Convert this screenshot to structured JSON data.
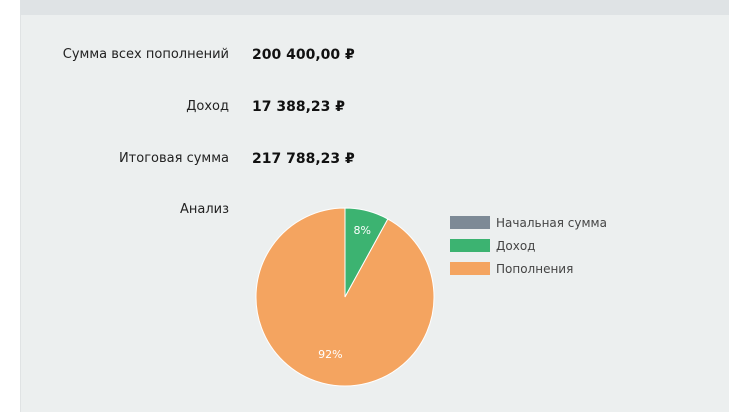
{
  "summary": {
    "total_deposits_label": "Сумма всех пополнений",
    "total_deposits_value": "200 400,00 ₽",
    "income_label": "Доход",
    "income_value": "17 388,23 ₽",
    "final_label": "Итоговая сумма",
    "final_value": "217 788,23 ₽",
    "analysis_label": "Анализ"
  },
  "chart_data": {
    "type": "pie",
    "categories": [
      "Начальная сумма",
      "Доход",
      "Пополнения"
    ],
    "values": [
      0,
      8,
      92
    ],
    "data_labels": [
      "",
      "8%",
      "92%"
    ],
    "colors": [
      "#7d8a96",
      "#3cb371",
      "#f4a460"
    ],
    "legend_position": "right"
  }
}
